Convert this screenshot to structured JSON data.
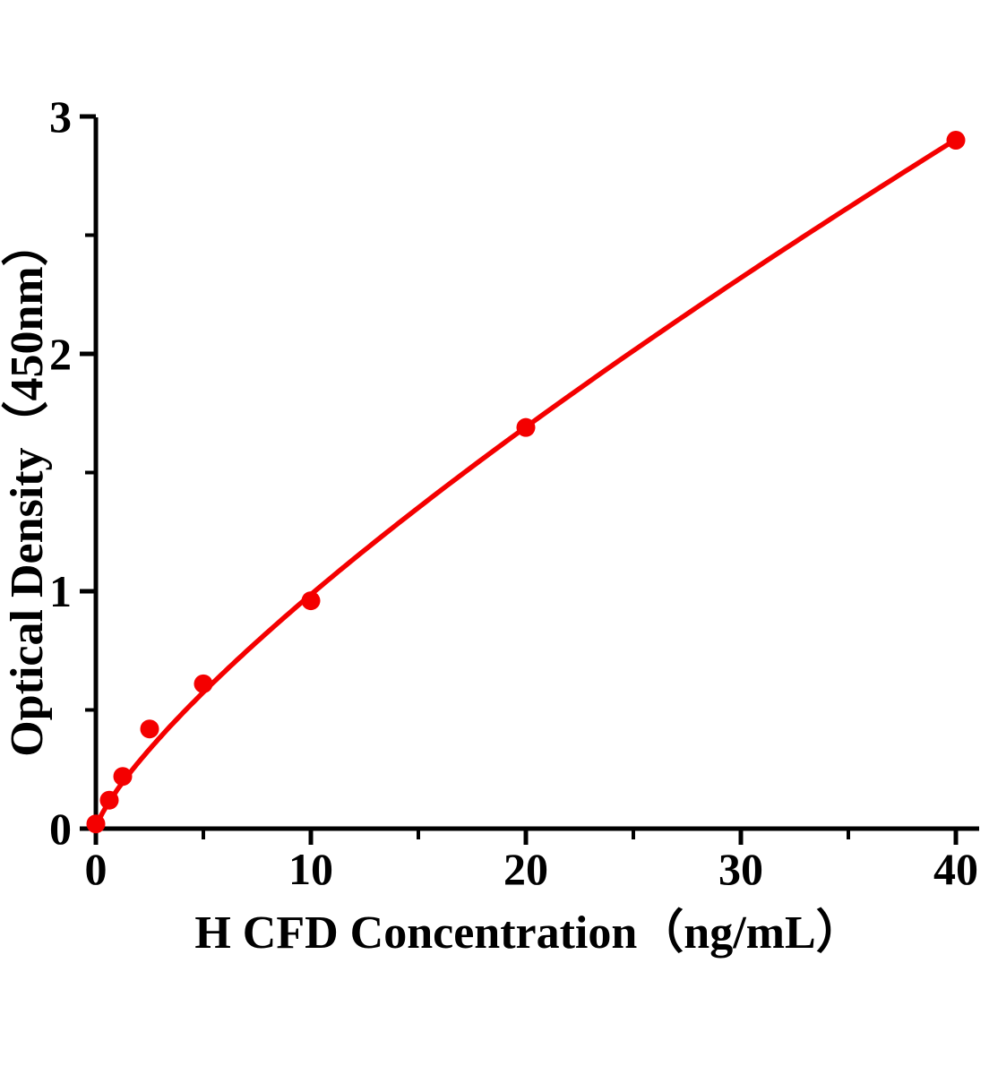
{
  "chart_data": {
    "type": "scatter",
    "title": "",
    "xlabel": "H CFD Concentration（ng/mL）",
    "ylabel": "Optical Density（450nm）",
    "x": [
      0,
      0.625,
      1.25,
      2.5,
      5,
      10,
      20,
      40
    ],
    "y": [
      0.02,
      0.12,
      0.22,
      0.42,
      0.61,
      0.96,
      1.69,
      2.9
    ],
    "xlim": [
      0,
      41
    ],
    "ylim": [
      0,
      3
    ],
    "x_major_ticks": [
      0,
      10,
      20,
      30,
      40
    ],
    "x_minor_ticks": [
      5,
      15,
      25,
      35
    ],
    "y_major_ticks": [
      0,
      1,
      2,
      3
    ],
    "y_minor_ticks": [
      0.5,
      1.5,
      2.5
    ],
    "grid": false,
    "legend": "none",
    "marker": "circle",
    "marker_color": "#f40000",
    "line_color": "#f40000",
    "axis_color": "#000000",
    "trend_fit": {
      "type": "power",
      "a": 0.164,
      "b": 0.779
    }
  }
}
